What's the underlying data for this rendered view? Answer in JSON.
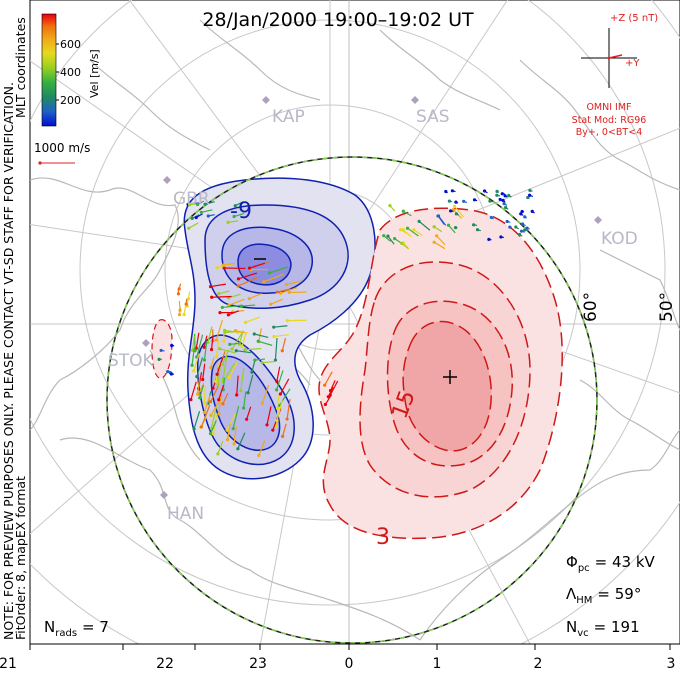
{
  "title": "28/Jan/2000 19:00–19:02 UT",
  "side_note": {
    "line1": "NOTE: FOR PREVIEW PURPOSES ONLY. PLEASE CONTACT VT-SD STAFF FOR VERIFICATION.",
    "line2": "FitOrder: 8, mapEX format",
    "line3": "MLT coordinates"
  },
  "colorbar": {
    "label": "Vel [m/s]",
    "ticks": [
      "600",
      "400",
      "200"
    ],
    "colors": [
      "#e8000b",
      "#f07010",
      "#f0a818",
      "#e8d820",
      "#98d020",
      "#38b040",
      "#208a60",
      "#2060c8",
      "#0010d0"
    ]
  },
  "vector_scale": {
    "label": "1000 m/s",
    "color": "#e02020"
  },
  "imf": {
    "z_label": "+Z (5 nT)",
    "y_label": "+Y",
    "source": "OMNI IMF",
    "model": "Stat Mod: RG96",
    "condition": "By+, 0<BT<4",
    "color": "#e02020"
  },
  "stations": [
    {
      "name": "KAP"
    },
    {
      "name": "SAS"
    },
    {
      "name": "GBR"
    },
    {
      "name": "KOD"
    },
    {
      "name": "STOK"
    },
    {
      "name": "HAN"
    }
  ],
  "latitude_labels": [
    "60°",
    "50°"
  ],
  "contour_labels": {
    "negative": [
      "-9"
    ],
    "positive": [
      "15",
      "3"
    ]
  },
  "stats": {
    "phi_pc": {
      "symbol": "Φ",
      "sub": "pc",
      "value": "= 43 kV"
    },
    "lambda_hm": {
      "symbol": "Λ",
      "sub": "HM",
      "value": "= 59°"
    },
    "n_vc": {
      "symbol": "N",
      "sub": "vc",
      "value": "= 191"
    },
    "n_rads": {
      "symbol": "N",
      "sub": "rads",
      "value": "= 7"
    }
  },
  "mlt_axis": [
    "21",
    "22",
    "23",
    "0",
    "1",
    "2",
    "3"
  ],
  "colors": {
    "negative_contour": "#1020b0",
    "positive_contour": "#d01818",
    "negative_fill": "#e2e2f0",
    "negative_fill_inner": "#b8b8e8",
    "negative_fill_core": "#8c8ce0",
    "positive_fill": "#fbe2e2",
    "positive_fill_inner": "#f6c2c2",
    "positive_fill_core": "#f0a6a6",
    "coastline": "#b8b8b8",
    "grid": "#c8c8c8",
    "boundary": "#202020",
    "boundary_dash": "#80d050"
  }
}
